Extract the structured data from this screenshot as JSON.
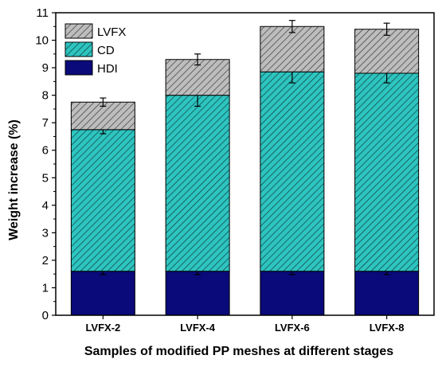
{
  "chart_data": {
    "type": "bar",
    "stacked": true,
    "categories": [
      "LVFX-2",
      "LVFX-4",
      "LVFX-6",
      "LVFX-8"
    ],
    "series": [
      {
        "name": "HDI",
        "values": [
          1.6,
          1.6,
          1.6,
          1.6
        ],
        "errors": [
          0.12,
          0.12,
          0.12,
          0.12
        ],
        "color": "#0a0a7a",
        "pattern": "solid"
      },
      {
        "name": "CD",
        "values": [
          5.15,
          6.4,
          7.25,
          7.2
        ],
        "errors": [
          0.15,
          0.4,
          0.4,
          0.35
        ],
        "color": "#2ec4c0",
        "pattern": "diagonal-hatch"
      },
      {
        "name": "LVFX",
        "values": [
          1.0,
          1.3,
          1.65,
          1.6
        ],
        "errors": [
          0.15,
          0.2,
          0.22,
          0.22
        ],
        "color": "#a0a0a0",
        "pattern": "diagonal-hatch"
      }
    ],
    "ylabel": "Weight increase (%)",
    "xlabel": "Samples of modified PP meshes at different stages",
    "ylim": [
      0,
      11
    ],
    "yticks": [
      0,
      1,
      2,
      3,
      4,
      5,
      6,
      7,
      8,
      9,
      10,
      11
    ],
    "legend": {
      "position": "top-left",
      "order": [
        "LVFX",
        "CD",
        "HDI"
      ]
    },
    "grid": false
  }
}
